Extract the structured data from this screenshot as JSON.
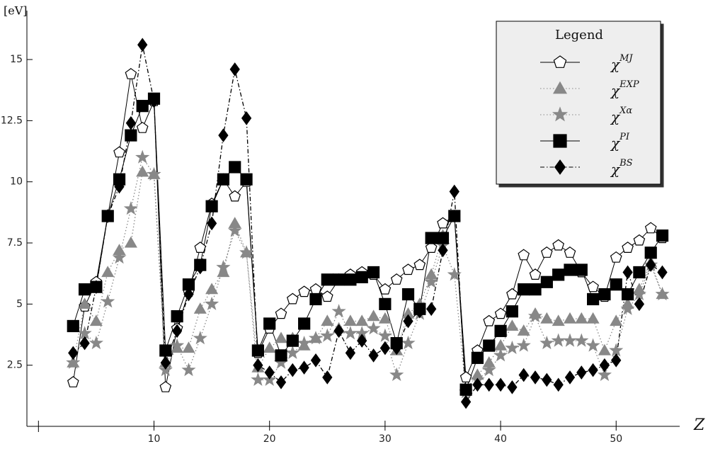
{
  "chart_data": {
    "type": "line",
    "y_label": "[eV]",
    "x_label": "Z",
    "legend_title": "Legend",
    "legend_position": "upper right",
    "xlim": [
      -1,
      55.5
    ],
    "ylim": [
      0,
      17
    ],
    "xticks": [
      10,
      20,
      30,
      40,
      50
    ],
    "yticks": [
      2.5,
      5,
      7.5,
      10,
      12.5,
      15
    ],
    "x": [
      3,
      4,
      5,
      6,
      7,
      8,
      9,
      10,
      11,
      12,
      13,
      14,
      15,
      16,
      17,
      18,
      19,
      20,
      21,
      22,
      23,
      24,
      25,
      26,
      27,
      28,
      29,
      30,
      31,
      32,
      33,
      34,
      35,
      36,
      37,
      38,
      39,
      40,
      41,
      42,
      43,
      44,
      45,
      46,
      47,
      48,
      49,
      50,
      51,
      52,
      53,
      54
    ],
    "series": [
      {
        "name": "χMJ",
        "color": "#000000",
        "marker": "pentagon",
        "filled": false,
        "line": "solid",
        "values": [
          1.8,
          4.9,
          5.9,
          8.6,
          11.2,
          14.4,
          12.2,
          13.3,
          1.6,
          4.0,
          5.5,
          7.3,
          9.1,
          10.1,
          9.4,
          10.0,
          3.0,
          4.0,
          4.6,
          5.2,
          5.5,
          5.6,
          5.3,
          6.0,
          6.2,
          6.3,
          6.2,
          5.6,
          6.0,
          6.4,
          6.6,
          7.3,
          8.3,
          8.6,
          2.0,
          3.1,
          4.3,
          4.6,
          5.4,
          7.0,
          6.2,
          7.1,
          7.4,
          7.1,
          6.3,
          5.7,
          5.3,
          6.9,
          7.3,
          7.6,
          8.1,
          7.7
        ]
      },
      {
        "name": "χEXP",
        "color": "#888888",
        "marker": "triangle",
        "filled": true,
        "line": "dotted",
        "values": [
          2.6,
          5.0,
          4.3,
          6.3,
          7.2,
          7.5,
          10.4,
          10.3,
          2.6,
          3.2,
          3.2,
          4.8,
          5.6,
          6.3,
          8.3,
          7.1,
          2.4,
          3.2,
          3.6,
          3.6,
          3.3,
          3.6,
          4.3,
          4.0,
          4.3,
          4.3,
          4.5,
          4.4,
          3.1,
          4.6,
          5.0,
          6.2,
          7.8,
          8.6,
          1.5,
          2.1,
          2.6,
          3.3,
          4.1,
          3.9,
          4.6,
          4.4,
          4.3,
          4.4,
          4.4,
          4.4,
          3.1,
          4.3,
          5.0,
          5.6,
          6.7,
          5.4
        ]
      },
      {
        "name": "χXα",
        "color": "#888888",
        "marker": "star",
        "filled": true,
        "line": "dotted",
        "values": [
          2.6,
          3.8,
          3.4,
          5.1,
          6.9,
          8.9,
          11.0,
          10.3,
          2.3,
          3.3,
          2.3,
          3.6,
          5.0,
          6.5,
          8.0,
          7.1,
          1.9,
          1.9,
          2.6,
          3.0,
          3.4,
          3.6,
          3.7,
          4.7,
          3.8,
          3.8,
          4.0,
          3.7,
          2.1,
          3.4,
          4.6,
          5.9,
          7.4,
          6.2,
          1.4,
          1.9,
          2.3,
          2.9,
          3.2,
          3.3,
          4.5,
          3.4,
          3.5,
          3.5,
          3.5,
          3.3,
          2.1,
          3.1,
          4.8,
          5.4,
          6.6,
          5.4
        ]
      },
      {
        "name": "χPI",
        "color": "#000000",
        "marker": "square",
        "filled": true,
        "line": "solid",
        "values": [
          4.1,
          5.6,
          5.7,
          8.6,
          10.1,
          11.9,
          13.1,
          13.4,
          3.1,
          4.5,
          5.8,
          6.6,
          9.0,
          10.1,
          10.6,
          10.1,
          3.1,
          4.2,
          2.9,
          3.5,
          4.2,
          5.2,
          6.0,
          6.0,
          6.0,
          6.1,
          6.3,
          5.0,
          3.4,
          5.4,
          4.8,
          7.7,
          7.7,
          8.6,
          1.5,
          2.8,
          3.3,
          3.9,
          4.7,
          5.6,
          5.6,
          5.9,
          6.2,
          6.4,
          6.4,
          5.2,
          5.4,
          5.8,
          5.4,
          6.3,
          7.1,
          7.8
        ]
      },
      {
        "name": "χBS",
        "color": "#000000",
        "marker": "diamond",
        "filled": true,
        "line": "dashdot",
        "values": [
          3.0,
          3.4,
          5.7,
          8.6,
          9.8,
          12.4,
          15.6,
          13.3,
          2.6,
          3.9,
          5.4,
          6.5,
          8.3,
          11.9,
          14.6,
          12.6,
          2.5,
          2.2,
          1.8,
          2.3,
          2.4,
          2.7,
          2.0,
          3.9,
          3.0,
          3.5,
          2.9,
          3.2,
          3.2,
          4.3,
          4.7,
          4.8,
          7.2,
          9.6,
          1.0,
          1.7,
          1.7,
          1.7,
          1.6,
          2.1,
          2.0,
          1.9,
          1.7,
          2.0,
          2.2,
          2.3,
          2.5,
          2.7,
          6.3,
          5.0,
          6.6,
          6.3
        ]
      }
    ]
  }
}
